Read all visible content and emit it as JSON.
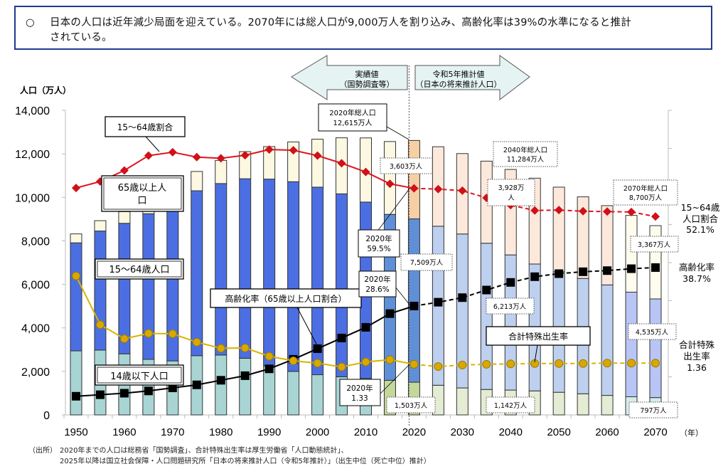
{
  "headline": {
    "bullet": "○",
    "line1": "日本の人口は近年減少局面を迎えている。2070年には総人口が9,000万人を割り込み、高齢化率は39%の水準になると推計",
    "line2": "されている。"
  },
  "source": {
    "label": "（出所）",
    "line1": "2020年までの人口は総務省「国勢調査」、合計特殊出生率は厚生労働省「人口動態統計」、",
    "line2": "2025年以降は国立社会保障・人口問題研究所「日本の将来推計人口（令和5年推計）」（出生中位（死亡中位）推計）"
  },
  "chart_data": {
    "type": "bar",
    "title": "",
    "ylabel": "人口（万人）",
    "xlabel": "（年）",
    "ylim": [
      0,
      14000
    ],
    "yticks": [
      "0",
      "2,000",
      "4,000",
      "6,000",
      "8,000",
      "10,000",
      "12,000",
      "14,000"
    ],
    "y2lim_percent": [
      0,
      80
    ],
    "y2lim_tfr": [
      0,
      8
    ],
    "xtick_labels": [
      "1950",
      "1960",
      "1970",
      "1980",
      "1990",
      "2000",
      "2010",
      "2020",
      "2030",
      "2040",
      "2050",
      "2060",
      "2070"
    ],
    "x": [
      1950,
      1955,
      1960,
      1965,
      1970,
      1975,
      1980,
      1985,
      1990,
      1995,
      2000,
      2005,
      2010,
      2015,
      2020,
      2025,
      2030,
      2035,
      2040,
      2045,
      2050,
      2055,
      2060,
      2065,
      2070
    ],
    "actual_until": 2020,
    "series": [
      {
        "name": "14歳以下人口",
        "unit": "万人",
        "values": [
          2943,
          2980,
          2807,
          2553,
          2482,
          2722,
          2751,
          2603,
          2249,
          2001,
          1847,
          1752,
          1680,
          1589,
          1503,
          1363,
          1240,
          1169,
          1142,
          1104,
          1041,
          971,
          897,
          834,
          797
        ]
      },
      {
        "name": "15～64歳人口",
        "unit": "万人",
        "values": [
          4966,
          5473,
          6000,
          6693,
          7157,
          7581,
          7883,
          8251,
          8590,
          8717,
          8622,
          8409,
          8103,
          7629,
          7509,
          7310,
          7076,
          6722,
          6213,
          5832,
          5540,
          5302,
          5078,
          4809,
          4535
        ]
      },
      {
        "name": "65歳以上人口",
        "unit": "万人",
        "values": [
          411,
          475,
          535,
          618,
          733,
          887,
          1065,
          1247,
          1493,
          1828,
          2204,
          2576,
          2948,
          3347,
          3603,
          3653,
          3696,
          3773,
          3928,
          3945,
          3888,
          3750,
          3644,
          3528,
          3367
        ]
      }
    ],
    "lines": [
      {
        "name": "15～64歳割合",
        "unit": "%",
        "axis": "right-percent",
        "values": [
          59.6,
          61.3,
          64.2,
          68.1,
          69.0,
          67.7,
          67.4,
          68.2,
          69.7,
          69.5,
          68.1,
          66.1,
          63.8,
          60.7,
          59.5,
          59.3,
          58.9,
          57.0,
          55.1,
          53.7,
          53.8,
          53.5,
          53.4,
          53.3,
          52.1
        ]
      },
      {
        "name": "高齢化率（65歳以上人口割合）",
        "unit": "%",
        "axis": "right-percent",
        "values": [
          4.9,
          5.3,
          5.7,
          6.3,
          7.1,
          7.9,
          9.1,
          10.3,
          12.1,
          14.6,
          17.4,
          20.2,
          23.0,
          26.6,
          28.6,
          29.6,
          30.8,
          32.8,
          34.8,
          36.3,
          37.1,
          37.6,
          37.9,
          38.4,
          38.7
        ]
      },
      {
        "name": "合計特殊出生率",
        "unit": "",
        "axis": "right-tfr",
        "values": [
          3.65,
          2.37,
          2.0,
          2.14,
          2.13,
          1.91,
          1.75,
          1.76,
          1.54,
          1.42,
          1.36,
          1.26,
          1.39,
          1.45,
          1.33,
          1.27,
          1.31,
          1.33,
          1.34,
          1.35,
          1.35,
          1.35,
          1.36,
          1.36,
          1.36
        ]
      }
    ],
    "colors": {
      "age0_14_actual": "#a8d5d3",
      "age15_64_actual": "#4b6fe3",
      "age65_actual": "#fcf8e1",
      "age0_14_2015": "#c3d89a",
      "age15_64_2015": "#5f8fd6",
      "age0_14_2020": "#c3d89a",
      "age15_64_2020": "#5f8fd6",
      "age65_2020": "#f6cfa5",
      "age0_14_proj": "#e4ecd4",
      "age15_64_proj": "#bdd0ef",
      "age65_proj": "#fde9dc",
      "age0_14_last": "#d5ecea",
      "age15_64_last": "#b8c5f5",
      "age65_last": "#fdfcee",
      "ratio_line": "#e0131b",
      "aging_line": "#000000",
      "tfr_line": "#d8b400",
      "tfr_marker": "#d9a800"
    },
    "arrows": {
      "left": {
        "line1": "実績値",
        "line2": "（国勢調査等）"
      },
      "right": {
        "line1": "令和5年推計値",
        "line2": "（日本の将来推計人口）"
      }
    },
    "annotations": {
      "ratio_label": "15～64歳割合",
      "elderly_label_line1": "65歳以上人",
      "elderly_label_line2": "口",
      "working_label": "15～64歳人口",
      "aging_label": "高齢化率（65歳以上人口割合）",
      "child_label": "14歳以下人口",
      "tfr_label": "合計特殊出生率",
      "total2020_line1": "2020年総人口",
      "total2020_line2": "12,615万人",
      "total2040_line1": "2040年総人口",
      "total2040_line2": "11,284万人",
      "total2070_line1": "2070年総人口",
      "total2070_line2": "8,700万人",
      "e65_2020": "3,603万人",
      "w_2020": "7,509万人",
      "c_2020": "1,503万人",
      "e65_2040_line1": "3,928万",
      "e65_2040_line2": "人",
      "w_2040": "6,213万人",
      "c_2040": "1,142万人",
      "e65_2070": "3,367万人",
      "w_2070": "4,535万人",
      "c_2070": "797万人",
      "ratio2020_line1": "2020年",
      "ratio2020_line2": "59.5%",
      "aging2020_line1": "2020年",
      "aging2020_line2": "28.6%",
      "tfr2020_line1": "2020年",
      "tfr2020_line2": "1.33",
      "end_ratio_line1": "15~64歳",
      "end_ratio_line2": "人口割合",
      "end_ratio_line3": "52.1%",
      "end_aging_line1": "高齢化率",
      "end_aging_line2": "38.7%",
      "end_tfr_line1": "合計特殊",
      "end_tfr_line2": "出生率",
      "end_tfr_line3": "1.36"
    }
  }
}
